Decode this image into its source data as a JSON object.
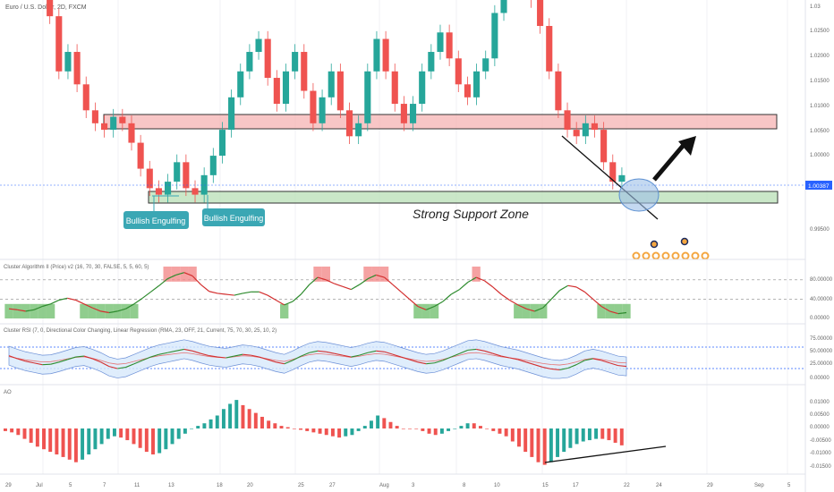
{
  "header": {
    "symbol_label": "Euro / U.S. Dollar, 2D, FXCM"
  },
  "main_price": {
    "axis_ticks": [
      "1.02500",
      "1.02000",
      "1.01500",
      "1.01000",
      "1.00500",
      "1.00000",
      "0.99500"
    ],
    "top_tick": "1.03",
    "current_price": "1.00387",
    "current_price_color": "#2962ff",
    "resistance_zone": {
      "low": 1.0087,
      "high": 1.0119,
      "color": "#f4a7a7"
    },
    "support_zone": {
      "low": 1.0003,
      "high": 1.0027,
      "label": "Strong Support Zone",
      "color": "#b8dfb5"
    },
    "annotations": [
      {
        "label": "Bullish Engulfing",
        "color": "#3aa7b4"
      },
      {
        "label": "Bullish Engulfing",
        "color": "#3aa7b4"
      }
    ]
  },
  "panels": {
    "cluster_algorithm": {
      "label": "Cluster Algorithm II (Price) v2 (16, 70, 30, FALSE, 5, 5, 60, 5)",
      "axis_ticks": [
        "80.00000",
        "40.00000",
        "0.00000"
      ]
    },
    "cluster_rsi": {
      "label": "Cluster RSI (7, 0, Directional Color Changing, Linear Regression (RMA, 23, OFF, 21,   Current, 75, 70, 30, 25, 10, 2)",
      "axis_ticks": [
        "75.00000",
        "50.00000",
        "25.00000",
        "0.00000"
      ]
    },
    "ao": {
      "label": "AO",
      "axis_ticks": [
        "0.01000",
        "0.00500",
        "0.00000",
        "-0.00500",
        "-0.01000",
        "-0.01500"
      ]
    }
  },
  "time_axis": [
    "29",
    "Jul",
    "5",
    "7",
    "11",
    "13",
    "18",
    "20",
    "25",
    "27",
    "Aug",
    "3",
    "8",
    "10",
    "15",
    "17",
    "22",
    "24",
    "29",
    "Sep",
    "5"
  ],
  "chart_data": {
    "type": "candlestick",
    "title": "",
    "ylim": [
      0.9935,
      1.031
    ],
    "close": [
      1.041,
      1.039,
      1.04,
      1.033,
      1.0285,
      1.02,
      1.023,
      1.018,
      1.014,
      1.012,
      1.011,
      1.013,
      1.012,
      1.009,
      1.005,
      1.002,
      1.001,
      1.003,
      1.006,
      1.002,
      1.001,
      1.004,
      1.007,
      1.011,
      1.016,
      1.02,
      1.023,
      1.025,
      1.019,
      1.015,
      1.02,
      1.023,
      1.017,
      1.012,
      1.016,
      1.02,
      1.014,
      1.01,
      1.012,
      1.02,
      1.025,
      1.02,
      1.015,
      1.012,
      1.015,
      1.02,
      1.023,
      1.026,
      1.022,
      1.018,
      1.016,
      1.02,
      1.022,
      1.029,
      1.034,
      1.038,
      1.036,
      1.031,
      1.027,
      1.02,
      1.014,
      1.011,
      1.01,
      1.012,
      1.011,
      1.006,
      1.003,
      1.004
    ],
    "cluster_algorithm": [
      20,
      18,
      15,
      18,
      25,
      30,
      38,
      42,
      38,
      30,
      22,
      15,
      12,
      15,
      20,
      30,
      42,
      55,
      68,
      82,
      90,
      95,
      88,
      70,
      56,
      52,
      50,
      48,
      52,
      55,
      55,
      48,
      38,
      28,
      35,
      50,
      70,
      85,
      80,
      72,
      66,
      60,
      70,
      82,
      90,
      85,
      70,
      55,
      40,
      25,
      18,
      25,
      35,
      50,
      60,
      75,
      85,
      78,
      65,
      50,
      38,
      28,
      20,
      15,
      22,
      40,
      58,
      68,
      65,
      55,
      40,
      25,
      15,
      10,
      12
    ],
    "cluster_rsi": [
      55,
      48,
      42,
      38,
      34,
      35,
      40,
      46,
      52,
      54,
      48,
      40,
      30,
      25,
      28,
      36,
      44,
      52,
      58,
      62,
      66,
      70,
      66,
      60,
      55,
      52,
      50,
      54,
      58,
      56,
      52,
      46,
      40,
      36,
      44,
      54,
      62,
      66,
      64,
      60,
      56,
      52,
      56,
      62,
      66,
      64,
      58,
      52,
      46,
      40,
      36,
      38,
      44,
      52,
      60,
      68,
      70,
      66,
      60,
      54,
      50,
      46,
      40,
      34,
      28,
      24,
      22,
      26,
      34,
      44,
      48,
      44,
      38,
      32,
      30
    ],
    "ao": [
      -0.001,
      -0.0015,
      -0.0025,
      -0.004,
      -0.0055,
      -0.007,
      -0.008,
      -0.009,
      -0.01,
      -0.011,
      -0.012,
      -0.013,
      -0.012,
      -0.01,
      -0.008,
      -0.006,
      -0.004,
      -0.003,
      -0.0035,
      -0.0045,
      -0.006,
      -0.0075,
      -0.009,
      -0.01,
      -0.0095,
      -0.008,
      -0.006,
      -0.004,
      -0.002,
      0.0,
      0.001,
      0.002,
      0.0035,
      0.005,
      0.0075,
      0.0095,
      0.011,
      0.009,
      0.0075,
      0.006,
      0.0045,
      0.003,
      0.002,
      0.001,
      0.0005,
      0.0,
      -0.0005,
      -0.001,
      -0.0015,
      -0.002,
      -0.0025,
      -0.003,
      -0.0035,
      -0.003,
      -0.0025,
      -0.001,
      0.001,
      0.003,
      0.005,
      0.004,
      0.0025,
      0.001,
      0.0,
      0.0,
      0.0,
      -0.001,
      -0.002,
      -0.0025,
      -0.002,
      -0.001,
      0.0,
      0.001,
      0.002,
      0.002,
      0.001,
      0.0,
      -0.001,
      -0.002,
      -0.003,
      -0.005,
      -0.007,
      -0.009,
      -0.011,
      -0.013,
      -0.014,
      -0.013,
      -0.011,
      -0.009,
      -0.0075,
      -0.006,
      -0.005,
      -0.0045,
      -0.004,
      -0.004,
      -0.0045,
      -0.0055,
      -0.0065
    ]
  }
}
